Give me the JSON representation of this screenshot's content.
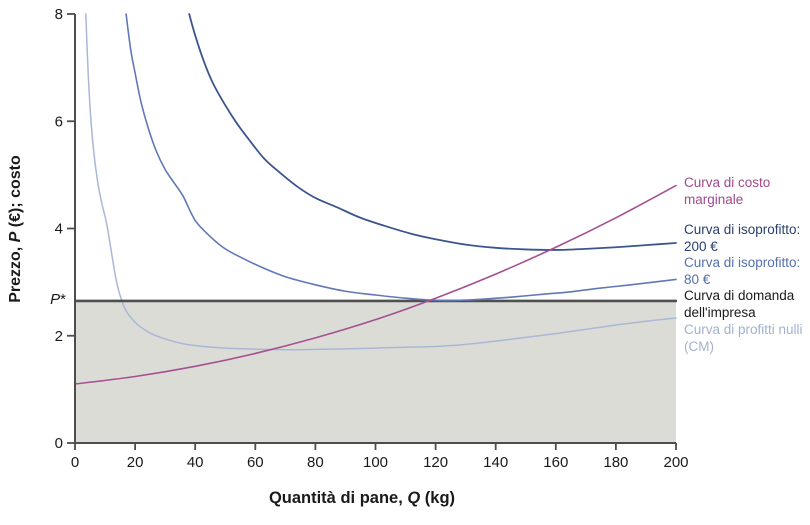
{
  "figure": {
    "y_axis": {
      "title_pre": "Prezzo, ",
      "title_var": "P",
      "title_post": " (€); costo",
      "p_star_var": "P",
      "p_star_suffix": "*"
    },
    "x_axis": {
      "title_pre": "Quantità di pane, ",
      "title_var": "Q",
      "title_post": " (kg)"
    }
  },
  "legend": [
    {
      "label": "Curva di costo marginale",
      "color": "#a1498c"
    },
    {
      "label": "Curva di isoprofitto: 200 €",
      "color": "#293f6d"
    },
    {
      "label": "Curva di isoprofitto: 80 €",
      "color": "#5470ae"
    },
    {
      "label": "Curva di domanda dell'impresa",
      "color": "#1a1a1a"
    },
    {
      "label": "Curva di profitti nulli (CM)",
      "color": "#a2b1d2"
    }
  ],
  "chart_data": {
    "type": "line",
    "title": "",
    "xlabel": "Quantità di pane, Q (kg)",
    "ylabel": "Prezzo, P (€); costo",
    "xlim": [
      0,
      200
    ],
    "ylim": [
      0,
      8
    ],
    "x_ticks": [
      0,
      20,
      40,
      60,
      80,
      100,
      120,
      140,
      160,
      180,
      200
    ],
    "y_ticks": [
      0,
      2,
      4,
      6,
      8
    ],
    "grid": false,
    "axis_color": "#4d4d4d",
    "tick_label_color": "#1a1a1a",
    "p_star_value": 2.65,
    "p_star_label": "P*",
    "shaded_region": {
      "x_range": [
        0,
        200
      ],
      "y_range": [
        0,
        2.65
      ],
      "color": "#dcdcd7"
    },
    "legend_position": "right of curve ends",
    "series": [
      {
        "name": "curva-profitti-nulli",
        "label": "Curva di profitti nulli (CM)",
        "color": "#a9b8d6",
        "stroke_width": 1.5,
        "points": [
          [
            3.6,
            8
          ],
          [
            4.3,
            7.0
          ],
          [
            5.2,
            6.1
          ],
          [
            6.3,
            5.4
          ],
          [
            7.6,
            4.85
          ],
          [
            9,
            4.45
          ],
          [
            10.5,
            4.1
          ],
          [
            12,
            3.6
          ],
          [
            13.5,
            3.1
          ],
          [
            14.5,
            2.85
          ],
          [
            15.5,
            2.67
          ],
          [
            16.5,
            2.52
          ],
          [
            18,
            2.38
          ],
          [
            21,
            2.2
          ],
          [
            25,
            2.05
          ],
          [
            30,
            1.94
          ],
          [
            36,
            1.85
          ],
          [
            43,
            1.8
          ],
          [
            50,
            1.77
          ],
          [
            60,
            1.75
          ],
          [
            70,
            1.74
          ],
          [
            80,
            1.745
          ],
          [
            90,
            1.755
          ],
          [
            100,
            1.77
          ],
          [
            110,
            1.785
          ],
          [
            120,
            1.8
          ],
          [
            130,
            1.84
          ],
          [
            140,
            1.9
          ],
          [
            150,
            1.97
          ],
          [
            160,
            2.04
          ],
          [
            170,
            2.12
          ],
          [
            180,
            2.2
          ],
          [
            190,
            2.27
          ],
          [
            200,
            2.33
          ]
        ]
      },
      {
        "name": "curva-domanda-impresa",
        "label": "Curva di domanda dell'impresa",
        "color": "#4f4f4f",
        "stroke_width": 2.6,
        "points": [
          [
            0,
            2.65
          ],
          [
            200,
            2.65
          ]
        ]
      },
      {
        "name": "curva-isoprofitto-80",
        "label": "Curva di isoprofitto: 80 €",
        "color": "#6079b4",
        "stroke_width": 1.6,
        "points": [
          [
            17,
            8
          ],
          [
            18.5,
            7.35
          ],
          [
            20,
            6.9
          ],
          [
            22,
            6.35
          ],
          [
            24.5,
            5.85
          ],
          [
            27,
            5.45
          ],
          [
            30,
            5.1
          ],
          [
            33,
            4.85
          ],
          [
            36,
            4.6
          ],
          [
            40,
            4.15
          ],
          [
            45,
            3.85
          ],
          [
            50,
            3.62
          ],
          [
            56,
            3.44
          ],
          [
            62,
            3.28
          ],
          [
            70,
            3.1
          ],
          [
            80,
            2.95
          ],
          [
            90,
            2.83
          ],
          [
            100,
            2.76
          ],
          [
            110,
            2.7
          ],
          [
            120,
            2.66
          ],
          [
            128,
            2.66
          ],
          [
            135,
            2.68
          ],
          [
            145,
            2.72
          ],
          [
            155,
            2.77
          ],
          [
            165,
            2.82
          ],
          [
            175,
            2.89
          ],
          [
            185,
            2.95
          ],
          [
            200,
            3.05
          ]
        ]
      },
      {
        "name": "curva-isoprofitto-200",
        "label": "Curva di isoprofitto: 200 €",
        "color": "#3b568f",
        "stroke_width": 1.8,
        "points": [
          [
            38,
            8
          ],
          [
            40,
            7.6
          ],
          [
            43,
            7.1
          ],
          [
            46,
            6.7
          ],
          [
            50,
            6.3
          ],
          [
            54,
            5.95
          ],
          [
            58,
            5.65
          ],
          [
            63,
            5.3
          ],
          [
            68,
            5.05
          ],
          [
            74,
            4.78
          ],
          [
            80,
            4.57
          ],
          [
            87,
            4.4
          ],
          [
            95,
            4.2
          ],
          [
            103,
            4.05
          ],
          [
            112,
            3.9
          ],
          [
            120,
            3.8
          ],
          [
            130,
            3.7
          ],
          [
            140,
            3.64
          ],
          [
            150,
            3.61
          ],
          [
            160,
            3.6
          ],
          [
            170,
            3.62
          ],
          [
            180,
            3.65
          ],
          [
            190,
            3.69
          ],
          [
            200,
            3.73
          ]
        ]
      },
      {
        "name": "curva-costo-marginale",
        "label": "Curva di costo marginale",
        "color": "#a55090",
        "stroke_width": 1.6,
        "points": [
          [
            0,
            1.1
          ],
          [
            20,
            1.24
          ],
          [
            40,
            1.43
          ],
          [
            60,
            1.67
          ],
          [
            80,
            1.96
          ],
          [
            100,
            2.3
          ],
          [
            120,
            2.7
          ],
          [
            140,
            3.15
          ],
          [
            160,
            3.65
          ],
          [
            180,
            4.2
          ],
          [
            200,
            4.8
          ]
        ]
      }
    ]
  }
}
